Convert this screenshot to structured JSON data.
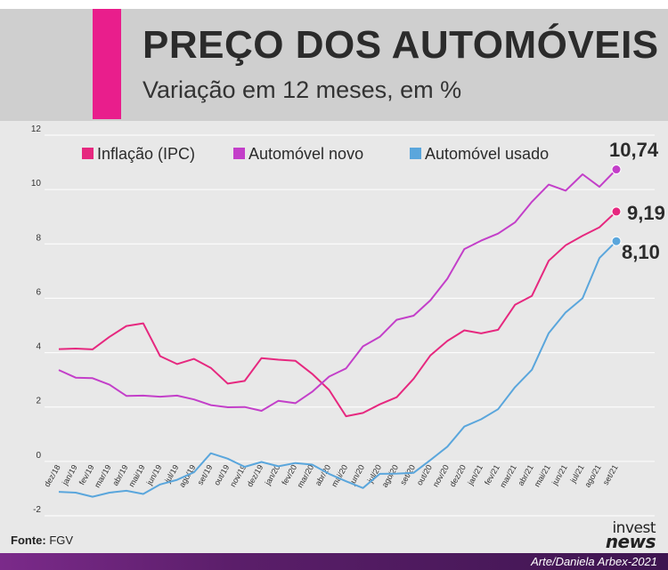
{
  "header": {
    "title": "PREÇO DOS AUTOMÓVEIS",
    "subtitle": "Variação em 12 meses, em %",
    "accent_color": "#e91e8c"
  },
  "footer": {
    "source_label": "Fonte:",
    "source_value": "FGV",
    "credit": "Arte/Daniela Arbex-2021",
    "logo_line1": "invest",
    "logo_line2": "news"
  },
  "chart_data": {
    "type": "line",
    "title": "",
    "xlabel": "",
    "ylabel": "",
    "ylim": [
      -2,
      12
    ],
    "yticks": [
      -2,
      0,
      2,
      4,
      6,
      8,
      10,
      12
    ],
    "grid": true,
    "legend_position": "top",
    "categories": [
      "dez/18",
      "jan/19",
      "fev/19",
      "mar/19",
      "abr/19",
      "mai/19",
      "jun/19",
      "jul/19",
      "ago/19",
      "set/19",
      "out/19",
      "nov/19",
      "dez/19",
      "jan/20",
      "fev/20",
      "mar/20",
      "abr/20",
      "mai/20",
      "jun/20",
      "jul/20",
      "ago/20",
      "set/20",
      "out/20",
      "nov/20",
      "dez/20",
      "jan/21",
      "fev/21",
      "mar/21",
      "abr/21",
      "mai/21",
      "jun/21",
      "jul/21",
      "ago/21",
      "set/21"
    ],
    "series": [
      {
        "name": "Inflação (IPC)",
        "color": "#e6287f",
        "values": [
          4.13,
          4.15,
          4.12,
          4.58,
          4.98,
          5.08,
          3.87,
          3.58,
          3.77,
          3.44,
          2.86,
          2.96,
          3.8,
          3.74,
          3.7,
          3.22,
          2.63,
          1.66,
          1.78,
          2.1,
          2.36,
          3.04,
          3.9,
          4.43,
          4.82,
          4.71,
          4.84,
          5.76,
          6.09,
          7.38,
          7.95,
          8.3,
          8.61,
          9.19
        ],
        "end_label": "9,19"
      },
      {
        "name": "Automóvel novo",
        "color": "#c33fc9",
        "values": [
          3.36,
          3.08,
          3.06,
          2.82,
          2.41,
          2.42,
          2.38,
          2.42,
          2.28,
          2.07,
          1.99,
          2.0,
          1.86,
          2.23,
          2.14,
          2.56,
          3.12,
          3.42,
          4.23,
          4.58,
          5.21,
          5.36,
          5.93,
          6.72,
          7.81,
          8.12,
          8.38,
          8.79,
          9.55,
          10.18,
          9.96,
          10.56,
          10.1,
          10.74
        ],
        "end_label": "10,74"
      },
      {
        "name": "Automóvel usado",
        "color": "#5aa6dc",
        "values": [
          -1.12,
          -1.15,
          -1.3,
          -1.15,
          -1.08,
          -1.2,
          -0.85,
          -0.68,
          -0.4,
          0.3,
          0.1,
          -0.2,
          -0.02,
          -0.18,
          -0.06,
          -0.12,
          -0.46,
          -0.73,
          -0.98,
          -0.46,
          -0.45,
          -0.42,
          0.05,
          0.54,
          1.28,
          1.55,
          1.92,
          2.73,
          3.37,
          4.72,
          5.48,
          6.0,
          7.48,
          8.1
        ],
        "end_label": "8,10"
      }
    ]
  }
}
